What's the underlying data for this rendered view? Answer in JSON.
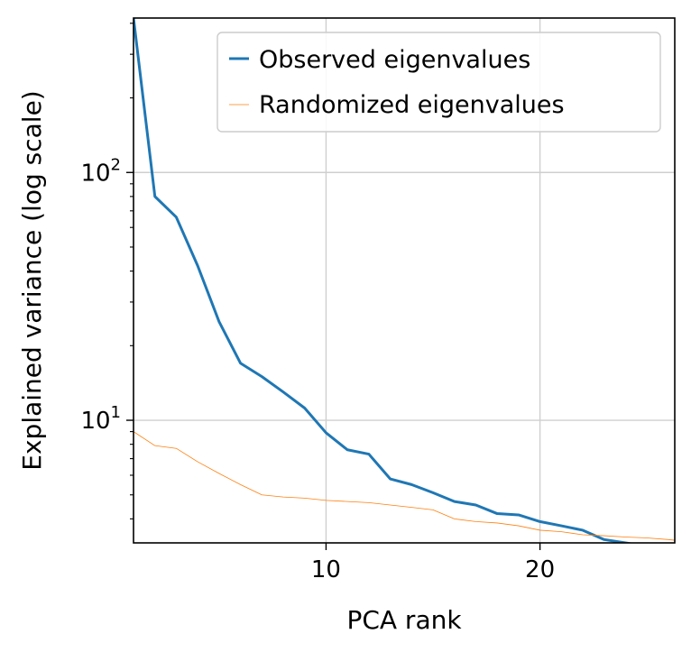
{
  "chart_data": {
    "type": "line",
    "xlabel": "PCA rank",
    "ylabel": "Explained variance (log scale)",
    "xlim": [
      1,
      26.3
    ],
    "ylim": [
      3.2,
      420
    ],
    "y_scale": "log",
    "grid": true,
    "legend_position": "top-right",
    "x_ticks": [
      {
        "value": 10,
        "label": "10"
      },
      {
        "value": 20,
        "label": "20"
      }
    ],
    "y_ticks": [
      {
        "value": 10,
        "base": "10",
        "exp": "1"
      },
      {
        "value": 100,
        "base": "10",
        "exp": "2"
      }
    ],
    "series": [
      {
        "name": "Observed eigenvalues",
        "color": "#1f77b4",
        "x": [
          1,
          2,
          3,
          4,
          5,
          6,
          7,
          8,
          9,
          10,
          11,
          12,
          13,
          14,
          15,
          16,
          17,
          18,
          19,
          20,
          21,
          22,
          23,
          24,
          25
        ],
        "y": [
          420,
          80,
          66,
          42,
          25,
          17,
          15,
          13,
          11.2,
          8.9,
          7.6,
          7.3,
          5.8,
          5.5,
          5.1,
          4.7,
          4.55,
          4.2,
          4.15,
          3.9,
          3.75,
          3.6,
          3.3,
          3.2,
          3.1
        ]
      },
      {
        "name": "Randomized eigenvalues",
        "color": "#ff7f0e",
        "x": [
          1,
          2,
          3,
          4,
          5,
          6,
          7,
          8,
          9,
          10,
          11,
          12,
          13,
          14,
          15,
          16,
          17,
          18,
          19,
          20,
          21,
          22,
          23,
          24,
          25,
          26,
          26.3
        ],
        "y": [
          9.0,
          7.9,
          7.7,
          6.8,
          6.1,
          5.5,
          5.0,
          4.9,
          4.85,
          4.75,
          4.7,
          4.65,
          4.55,
          4.45,
          4.35,
          4.0,
          3.9,
          3.85,
          3.75,
          3.6,
          3.55,
          3.45,
          3.42,
          3.38,
          3.35,
          3.3,
          3.28
        ]
      }
    ]
  }
}
